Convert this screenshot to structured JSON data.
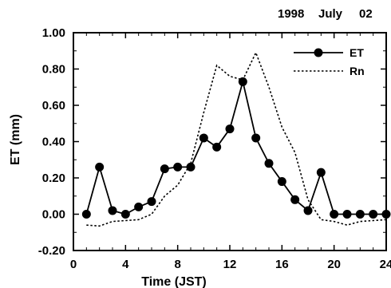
{
  "header": {
    "year": "1998",
    "month": "July",
    "day": "02"
  },
  "chart_data": {
    "type": "line",
    "xlabel": "Time   (JST)",
    "ylabel": "ET  (mm)",
    "xlim": [
      0,
      24
    ],
    "ylim": [
      -0.2,
      1.0
    ],
    "xticks": [
      0,
      4,
      8,
      12,
      16,
      20,
      24
    ],
    "yticks": [
      -0.2,
      0.0,
      0.2,
      0.4,
      0.6,
      0.8,
      1.0
    ],
    "xtick_labels": [
      "0",
      "4",
      "8",
      "12",
      "16",
      "20",
      "24"
    ],
    "ytick_labels": [
      "-0.20",
      "0.00",
      "0.20",
      "0.40",
      "0.60",
      "0.80",
      "1.00"
    ],
    "legend_position": "top-right",
    "grid": false,
    "series": [
      {
        "name": "ET",
        "style": "solid-line-filled-circle",
        "color": "#000000",
        "x": [
          1,
          2,
          3,
          4,
          5,
          6,
          7,
          8,
          9,
          10,
          11,
          12,
          13,
          14,
          15,
          16,
          17,
          18,
          19,
          20,
          21,
          22,
          23,
          24
        ],
        "y": [
          0.0,
          0.26,
          0.02,
          0.0,
          0.04,
          0.07,
          0.25,
          0.26,
          0.26,
          0.42,
          0.37,
          0.47,
          0.73,
          0.42,
          0.28,
          0.18,
          0.08,
          0.02,
          0.23,
          0.0,
          0.0,
          0.0,
          0.0,
          0.0
        ]
      },
      {
        "name": "Rn",
        "style": "dotted-line",
        "color": "#000000",
        "x": [
          1,
          2,
          3,
          4,
          5,
          6,
          7,
          8,
          9,
          10,
          11,
          12,
          13,
          14,
          15,
          16,
          17,
          18,
          19,
          20,
          21,
          22,
          23,
          24
        ],
        "y": [
          -0.06,
          -0.065,
          -0.04,
          -0.035,
          -0.03,
          0.0,
          0.1,
          0.16,
          0.28,
          0.56,
          0.82,
          0.76,
          0.74,
          0.89,
          0.7,
          0.48,
          0.34,
          0.08,
          -0.03,
          -0.04,
          -0.06,
          -0.04,
          -0.035,
          -0.03
        ]
      }
    ]
  }
}
